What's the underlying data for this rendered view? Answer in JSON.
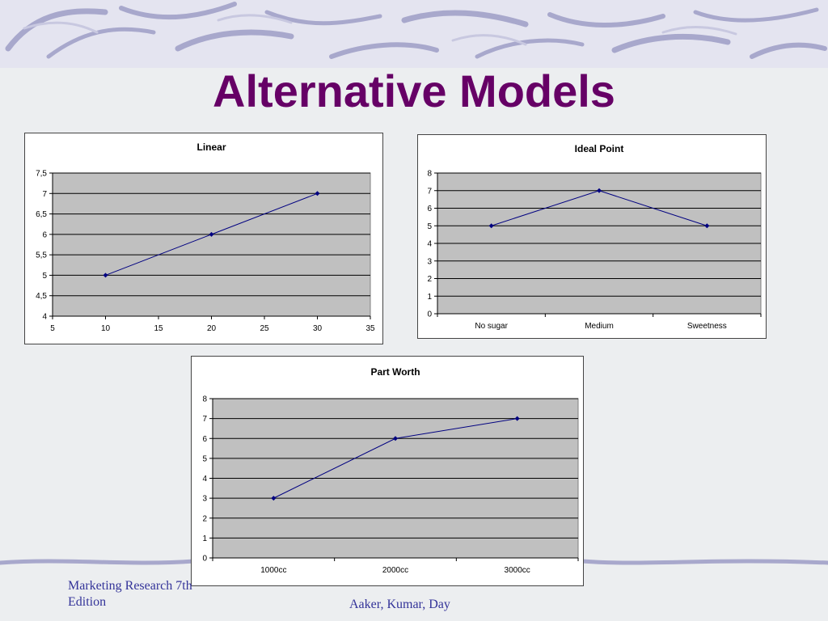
{
  "slide": {
    "title": "Alternative Models",
    "footer_left_line1": "Marketing Research 7th",
    "footer_left_line2": "Edition",
    "footer_right": "Aaker, Kumar, Day"
  },
  "colors": {
    "title": "#660066",
    "plot_area": "#c0c0c0",
    "series_line": "#000080",
    "footer": "#333399"
  },
  "chart_data": [
    {
      "type": "line",
      "title": "Linear",
      "x": [
        10,
        20,
        30
      ],
      "values": [
        5,
        6,
        7
      ],
      "xlim": [
        5,
        35
      ],
      "ylim": [
        4,
        7.5
      ],
      "x_ticks": [
        "5",
        "10",
        "15",
        "20",
        "25",
        "30",
        "35"
      ],
      "y_ticks": [
        "4",
        "4,5",
        "5",
        "5,5",
        "6",
        "6,5",
        "7",
        "7,5"
      ],
      "grid": true,
      "legend": "none"
    },
    {
      "type": "line",
      "title": "Ideal Point",
      "categories": [
        "No sugar",
        "Medium",
        "Sweetness"
      ],
      "values": [
        5,
        7,
        5
      ],
      "ylim": [
        0,
        8
      ],
      "y_ticks": [
        "0",
        "1",
        "2",
        "3",
        "4",
        "5",
        "6",
        "7",
        "8"
      ],
      "grid": true,
      "legend": "none"
    },
    {
      "type": "line",
      "title": "Part Worth",
      "categories": [
        "1000cc",
        "2000cc",
        "3000cc"
      ],
      "values": [
        3,
        6,
        7
      ],
      "ylim": [
        0,
        8
      ],
      "y_ticks": [
        "0",
        "1",
        "2",
        "3",
        "4",
        "5",
        "6",
        "7",
        "8"
      ],
      "grid": true,
      "legend": "none"
    }
  ]
}
